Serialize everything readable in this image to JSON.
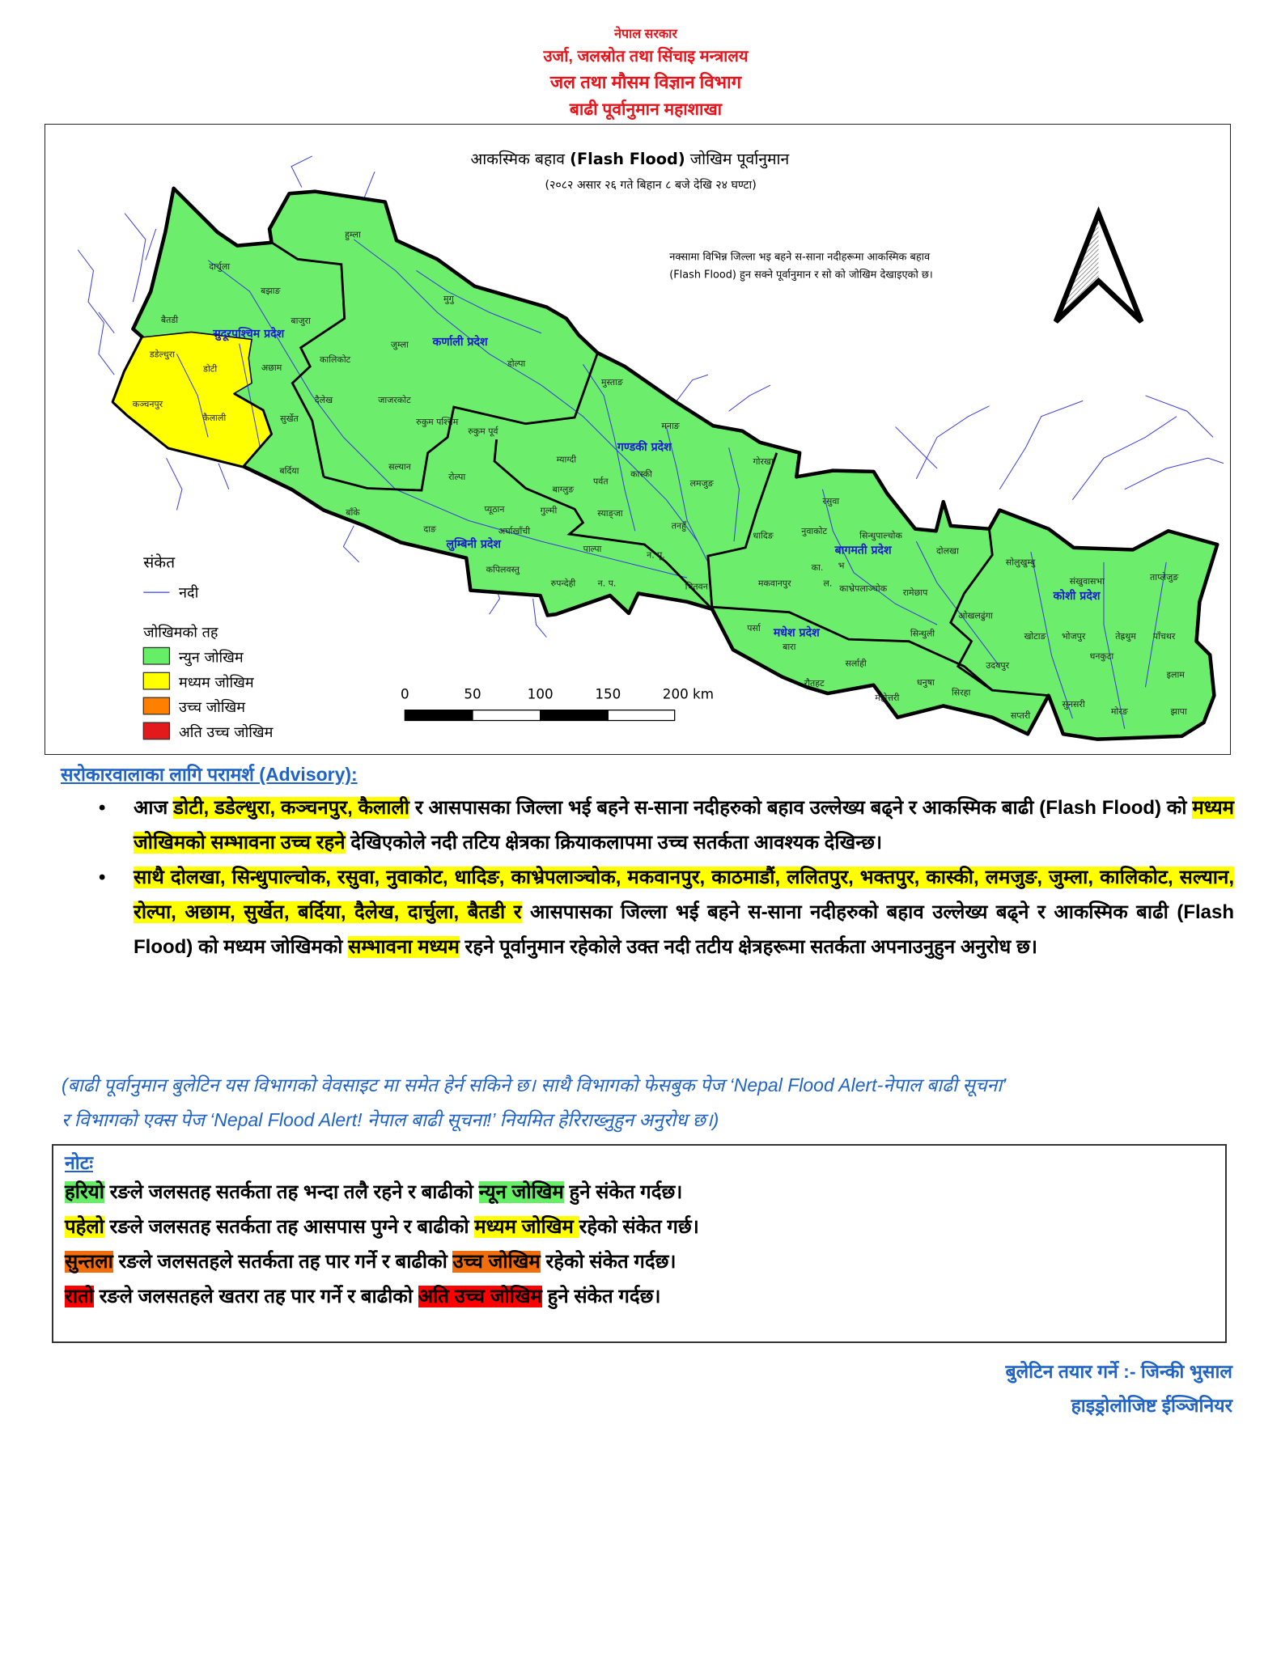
{
  "header": {
    "line1": "नेपाल सरकार",
    "line2": "उर्जा, जलस्रोत तथा सिंचाइ मन्त्रालय",
    "line3": "जल तथा मौसम विज्ञान विभाग",
    "line4": "बाढी पूर्वानुमान महाशाखा"
  },
  "map": {
    "title_pre": "आकस्मिक बहाव ",
    "title_bold": "(Flash Flood)",
    "title_post": " जोखिम पूर्वानुमान",
    "subtitle": "(२०८२ असार २६ गते बिहान ८ बजे देखि २४ घण्टा)",
    "description": [
      "नक्सामा विभिन्न जिल्ला भइ बहने स-साना नदीहरूमा आकस्मिक बहाव",
      "(Flash Flood) हुन सक्ने पूर्वानुमान र सो को जोखिम देखाइएको छ।"
    ],
    "north_arrow_icon": "north-arrow",
    "colors": {
      "low": "#6cee6c",
      "medium": "#ffff00",
      "high": "#ff8000",
      "very_high": "#e31a1c",
      "river": "#3b3bdc",
      "province_label": "#1a1ad0"
    },
    "legend": {
      "title": "संकेत",
      "river": "नदी",
      "risk_title": "जोखिमको तह",
      "levels": [
        {
          "label": "न्युन जोखिम",
          "color": "#66ee66"
        },
        {
          "label": "मध्यम जोखिम",
          "color": "#ffff00"
        },
        {
          "label": "उच्च जोखिम",
          "color": "#ff8000"
        },
        {
          "label": "अति उच्च जोखिम",
          "color": "#e31a1c"
        }
      ]
    },
    "scale": [
      "0",
      "50",
      "100",
      "150",
      "200 km"
    ],
    "provinces": [
      "सुदूरपश्चिम प्रदेश",
      "कर्णाली प्रदेश",
      "लुम्बिनी प्रदेश",
      "गण्डकी प्रदेश",
      "बागमती प्रदेश",
      "मधेश प्रदेश",
      "कोशी प्रदेश"
    ],
    "medium_risk_districts": [
      "डडेल्धुरा",
      "डोटी",
      "कञ्चनपुर",
      "कैलाली"
    ],
    "districts": [
      "हुम्ला",
      "दार्चुला",
      "बझाङ",
      "बैतडी",
      "बाजुरा",
      "मुगु",
      "डडेल्धुरा",
      "डोटी",
      "अछाम",
      "कालिकोट",
      "जुम्ला",
      "डोल्पा",
      "कञ्चनपुर",
      "कैलाली",
      "दैलेख",
      "जाजरकोट",
      "सुर्खेत",
      "रुकुम पश्चिम",
      "रुकुम पूर्व",
      "सल्यान",
      "बर्दिया",
      "रोल्पा",
      "मुस्ताङ",
      "मनाङ",
      "म्याग्दी",
      "गोरखा",
      "कास्की",
      "पर्वत",
      "लमजुङ",
      "बाग्लुङ",
      "बाँके",
      "प्यूठान",
      "गुल्मी",
      "स्याङ्जा",
      "तनहुँ",
      "दाङ",
      "अर्घाखाँची",
      "धादिङ",
      "पाल्पा",
      "कपिलवस्तु",
      "न. पू.",
      "रुपन्देही",
      "न. प.",
      "चितवन",
      "रसुवा",
      "नुवाकोट",
      "सिन्धुपाल्चोक",
      "दोलखा",
      "सोलुखुम्बु",
      "का.",
      "भ",
      "ताप्लेजुङ",
      "संखुवासभा",
      "मकवानपुर",
      "ल.",
      "काभ्रेपलाञ्चोक",
      "रामेछाप",
      "ओखलढुंगा",
      "पर्सा",
      "सिन्धुली",
      "खोटाङ",
      "भोजपुर",
      "तेह्रथुम",
      "पाँचथर",
      "बारा",
      "धनकुटा",
      "सर्लाही",
      "उदयपुर",
      "इलाम",
      "रौतहट",
      "धनुषा",
      "सिरहा",
      "महोत्तरी",
      "सुनसरी",
      "मोरङ",
      "झापा",
      "सप्तरी"
    ]
  },
  "advisory": {
    "heading": "सरोकारवालाका लागि परामर्श (Advisory):",
    "bullets": [
      [
        {
          "t": "आज ",
          "h": ""
        },
        {
          "t": "डोटी, डडेल्धुरा, कञ्चनपुर, कैलाली",
          "h": "yellow"
        },
        {
          "t": " र आसपासका जिल्ला भई बहने स-साना नदीहरुको बहाव उल्लेख्य बढ्ने र आकस्मिक बाढी (Flash Flood) को ",
          "h": ""
        },
        {
          "t": "मध्यम जोखिमको सम्भावना उच्च रहने",
          "h": "yellow"
        },
        {
          "t": " देखिएकोले नदी तटिय क्षेत्रका क्रियाकलापमा उच्च सतर्कता आवश्यक देखिन्छ।",
          "h": ""
        }
      ],
      [
        {
          "t": "साथै दोलखा, सिन्धुपाल्चोक, रसुवा, नुवाकोट, धादिङ, काभ्रेपलाञ्चोक, मकवानपुर, काठमाडौं, ललितपुर, भक्तपुर, कास्की, लमजुङ, जुम्ला, कालिकोट, सल्यान, रोल्पा, अछाम, सुर्खेत, बर्दिया, दैलेख, दार्चुला, बैतडी र",
          "h": "yellow"
        },
        {
          "t": " आसपासका जिल्ला भई बहने स-साना नदीहरुको बहाव उल्लेख्य बढ्ने र आकस्मिक बाढी (Flash Flood) को मध्यम जोखिमको ",
          "h": ""
        },
        {
          "t": "सम्भावना मध्यम",
          "h": "yellow"
        },
        {
          "t": " रहने पूर्वानुमान रहेकोले उक्त नदी तटीय क्षेत्रहरूमा सतर्कता अपनाउनुहुन अनुरोध छ।",
          "h": ""
        }
      ]
    ]
  },
  "info": [
    "(बाढी पूर्वानुमान बुलेटिन यस विभागको वेवसाइट मा समेत हेर्न सकिने छ।  साथै विभागको फेसबुक पेज ‘Nepal Flood Alert-नेपाल बाढी सूचना’",
    "र विभागको एक्स पेज ‘Nepal Flood Alert! नेपाल बाढी सूचना!’ नियमित हेरिराख्नुहुन अनुरोध छ।)"
  ],
  "note": {
    "heading": "नोटः",
    "lines": [
      [
        {
          "t": "हरियो",
          "h": "green"
        },
        {
          "t": " रङले जलसतह सतर्कता तह भन्दा तलै रहने र बाढीको ",
          "h": ""
        },
        {
          "t": "न्यून जोखिम",
          "h": "green"
        },
        {
          "t": " हुने संकेत गर्दछ।",
          "h": ""
        }
      ],
      [
        {
          "t": "पहेलो",
          "h": "yellow"
        },
        {
          "t": " रङले जलसतह सतर्कता तह आसपास पुग्ने र बाढीको ",
          "h": ""
        },
        {
          "t": "मध्यम जोखिम ",
          "h": "yellow"
        },
        {
          "t": " रहेको संकेत गर्छ।",
          "h": ""
        }
      ],
      [
        {
          "t": "सुन्तला",
          "h": "orange"
        },
        {
          "t": " रङले जलसतहले सतर्कता तह पार गर्ने र बाढीको ",
          "h": ""
        },
        {
          "t": "उच्च जोखिम",
          "h": "orange"
        },
        {
          "t": " रहेको संकेत गर्दछ।",
          "h": ""
        }
      ],
      [
        {
          "t": "रातो",
          "h": "red"
        },
        {
          "t": " रङले जलसतहले खतरा तह पार गर्ने र बाढीको ",
          "h": ""
        },
        {
          "t": "अति उच्च जोखिम",
          "h": "red"
        },
        {
          "t": " हुने संकेत गर्दछ।",
          "h": ""
        }
      ]
    ]
  },
  "signature": {
    "prepared_by": "बुलेटिन तयार गर्ने :- जिन्की भुसाल",
    "designation": "हाइड्रोलोजिष्ट ईञ्जिनियर"
  }
}
